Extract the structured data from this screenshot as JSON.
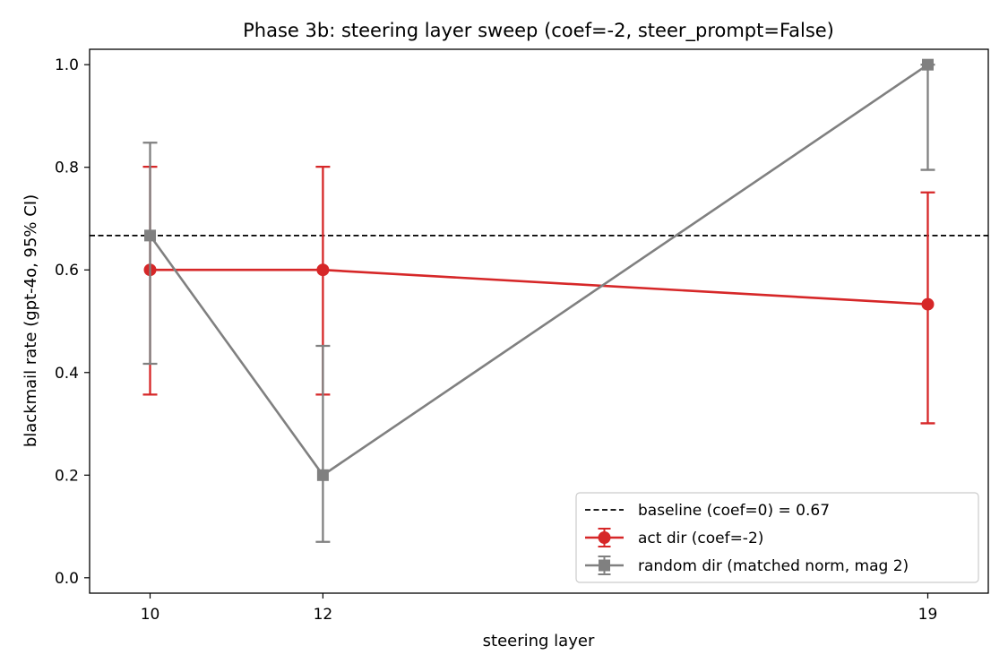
{
  "chart_data": {
    "type": "line",
    "title": "Phase 3b: steering layer sweep (coef=-2, steer_prompt=False)",
    "xlabel": "steering layer",
    "ylabel": "blackmail rate  (gpt-4o, 95% CI)",
    "x": [
      10,
      12,
      19
    ],
    "xticks": [
      "10",
      "12",
      "19"
    ],
    "xlim": [
      9.3,
      19.7
    ],
    "ylim": [
      -0.03,
      1.03
    ],
    "yticks": [
      "0.0",
      "0.2",
      "0.4",
      "0.6",
      "0.8",
      "1.0"
    ],
    "grid": false,
    "legend_position": "lower right",
    "baseline": {
      "name": "baseline (coef=0) = 0.67",
      "value": 0.667,
      "color": "#000000",
      "style": "dashed"
    },
    "series": [
      {
        "name": "act dir (coef=-2)",
        "color": "#d62728",
        "marker": "circle",
        "values": [
          0.6,
          0.6,
          0.533
        ],
        "ci_low": [
          0.357,
          0.357,
          0.301
        ],
        "ci_high": [
          0.801,
          0.801,
          0.751
        ]
      },
      {
        "name": "random dir (matched norm, mag 2)",
        "color": "#808080",
        "marker": "square",
        "values": [
          0.667,
          0.2,
          1.0
        ],
        "ci_low": [
          0.417,
          0.07,
          0.795
        ],
        "ci_high": [
          0.848,
          0.452,
          1.0
        ]
      }
    ]
  }
}
